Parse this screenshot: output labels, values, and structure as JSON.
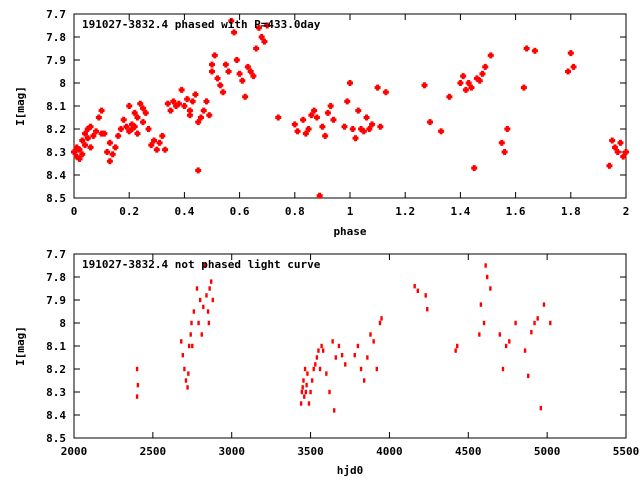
{
  "chart_data": [
    {
      "type": "scatter",
      "title": "191027-3832.4 phased with P=433.0day",
      "xlabel": "phase",
      "ylabel": "I[mag]",
      "xlim": [
        0,
        2
      ],
      "ylim": [
        8.5,
        7.7
      ],
      "x_ticks": [
        "0",
        "0.2",
        "0.4",
        "0.6",
        "0.8",
        "1",
        "1.2",
        "1.4",
        "1.6",
        "1.8",
        "2"
      ],
      "y_ticks": [
        "7.7",
        "7.8",
        "7.9",
        "8",
        "8.1",
        "8.2",
        "8.3",
        "8.4",
        "8.5"
      ],
      "marker_color": "#ff0000",
      "marker": "cross",
      "series": [
        {
          "x": [
            0.0,
            0.01,
            0.01,
            0.02,
            0.02,
            0.03,
            0.03,
            0.04,
            0.04,
            0.05,
            0.05,
            0.06,
            0.06,
            0.07,
            0.08,
            0.09,
            0.1,
            0.1,
            0.11,
            0.12,
            0.13,
            0.13,
            0.14,
            0.15,
            0.16,
            0.17,
            0.18,
            0.19,
            0.2,
            0.2,
            0.21,
            0.21,
            0.22,
            0.22,
            0.23,
            0.23,
            0.24,
            0.25,
            0.25,
            0.26,
            0.27,
            0.28,
            0.29,
            0.3,
            0.31,
            0.32,
            0.33,
            0.34,
            0.35,
            0.36,
            0.37,
            0.38,
            0.39,
            0.4,
            0.41,
            0.42,
            0.42,
            0.43,
            0.44,
            0.45,
            0.45,
            0.46,
            0.47,
            0.48,
            0.49,
            0.5,
            0.5,
            0.51,
            0.52,
            0.53,
            0.54,
            0.55,
            0.56,
            0.57,
            0.58,
            0.59,
            0.6,
            0.61,
            0.62,
            0.63,
            0.64,
            0.65,
            0.66,
            0.67,
            0.68,
            0.69,
            0.7,
            0.74,
            0.8,
            0.81,
            0.83,
            0.84,
            0.85,
            0.86,
            0.87,
            0.88,
            0.89,
            0.9,
            0.91,
            0.92,
            0.93,
            0.94,
            0.98,
            0.99,
            1.0,
            1.01,
            1.02,
            1.03,
            1.04,
            1.05,
            1.06,
            1.07,
            1.08,
            1.1,
            1.11,
            1.13,
            1.27,
            1.29,
            1.33,
            1.36,
            1.4,
            1.41,
            1.42,
            1.43,
            1.44,
            1.45,
            1.46,
            1.47,
            1.48,
            1.49,
            1.51,
            1.55,
            1.56,
            1.57,
            1.63,
            1.64,
            1.67,
            1.79,
            1.8,
            1.81,
            1.94,
            1.95,
            1.96,
            1.97,
            1.98,
            1.99,
            2.0
          ],
          "y": [
            8.3,
            8.32,
            8.28,
            8.33,
            8.29,
            8.25,
            8.31,
            8.22,
            8.27,
            8.2,
            8.24,
            8.19,
            8.28,
            8.23,
            8.21,
            8.15,
            8.22,
            8.12,
            8.22,
            8.3,
            8.34,
            8.26,
            8.31,
            8.28,
            8.23,
            8.2,
            8.16,
            8.19,
            8.21,
            8.1,
            8.18,
            8.2,
            8.13,
            8.19,
            8.15,
            8.22,
            8.09,
            8.11,
            8.17,
            8.13,
            8.2,
            8.27,
            8.25,
            8.29,
            8.26,
            8.23,
            8.29,
            8.09,
            8.12,
            8.08,
            8.1,
            8.09,
            8.03,
            8.1,
            8.07,
            8.12,
            8.14,
            8.08,
            8.05,
            8.38,
            8.17,
            8.15,
            8.12,
            8.08,
            8.14,
            7.92,
            7.95,
            7.88,
            7.98,
            8.01,
            8.04,
            7.92,
            7.95,
            7.73,
            7.78,
            7.9,
            7.96,
            7.99,
            8.06,
            7.93,
            7.95,
            7.97,
            7.85,
            7.76,
            7.8,
            7.82,
            7.75,
            8.15,
            8.18,
            8.21,
            8.16,
            8.22,
            8.2,
            8.14,
            8.12,
            8.15,
            8.49,
            8.19,
            8.23,
            8.13,
            8.1,
            8.16,
            8.19,
            8.08,
            8.0,
            8.2,
            8.24,
            8.12,
            8.2,
            8.21,
            8.15,
            8.2,
            8.18,
            8.02,
            8.19,
            8.04,
            8.01,
            8.17,
            8.21,
            8.06,
            8.0,
            7.97,
            8.03,
            8.0,
            8.02,
            8.37,
            7.98,
            7.99,
            7.96,
            7.93,
            7.88,
            8.26,
            8.3,
            8.2,
            8.02,
            7.85,
            7.86,
            7.95,
            7.87,
            7.93,
            8.36,
            8.25,
            8.28,
            8.3,
            8.26,
            8.32,
            8.3
          ]
        }
      ]
    },
    {
      "type": "scatter",
      "title": "191027-3832.4 not phased light curve",
      "xlabel": "hjd0",
      "ylabel": "I[mag]",
      "xlim": [
        2000,
        5500
      ],
      "ylim": [
        8.5,
        7.7
      ],
      "x_ticks": [
        "2000",
        "2500",
        "3000",
        "3500",
        "4000",
        "4500",
        "5000",
        "5500"
      ],
      "y_ticks": [
        "7.7",
        "7.8",
        "7.9",
        "8",
        "8.1",
        "8.2",
        "8.3",
        "8.4",
        "8.5"
      ],
      "marker_color": "#ff0000",
      "marker": "dot",
      "series": [
        {
          "x": [
            2400,
            2405,
            2400,
            2680,
            2690,
            2700,
            2710,
            2720,
            2725,
            2730,
            2740,
            2745,
            2750,
            2760,
            2780,
            2790,
            2800,
            2810,
            2820,
            2830,
            2840,
            2850,
            2855,
            2860,
            2870,
            2880,
            3440,
            3445,
            3450,
            3455,
            3460,
            3465,
            3470,
            3475,
            3480,
            3490,
            3500,
            3510,
            3520,
            3530,
            3540,
            3550,
            3560,
            3570,
            3580,
            3600,
            3620,
            3640,
            3650,
            3660,
            3680,
            3700,
            3720,
            3780,
            3800,
            3820,
            3840,
            3860,
            3880,
            3900,
            3920,
            3940,
            3950,
            4160,
            4180,
            4230,
            4240,
            4420,
            4430,
            4570,
            4580,
            4600,
            4610,
            4620,
            4640,
            4700,
            4720,
            4740,
            4760,
            4800,
            4860,
            4880,
            4900,
            4920,
            4940,
            4960,
            4980,
            5020
          ],
          "y": [
            8.2,
            8.27,
            8.32,
            8.08,
            8.14,
            8.2,
            8.25,
            8.28,
            8.22,
            8.1,
            8.05,
            8.0,
            8.1,
            7.95,
            7.85,
            8.0,
            7.9,
            8.05,
            7.93,
            7.75,
            7.88,
            7.95,
            8.0,
            7.85,
            7.82,
            7.9,
            8.35,
            8.3,
            8.28,
            8.25,
            8.32,
            8.2,
            8.3,
            8.27,
            8.22,
            8.35,
            8.3,
            8.25,
            8.2,
            8.18,
            8.15,
            8.12,
            8.2,
            8.1,
            8.12,
            8.22,
            8.3,
            8.08,
            8.38,
            8.15,
            8.1,
            8.14,
            8.18,
            8.14,
            8.1,
            8.2,
            8.25,
            8.15,
            8.05,
            8.08,
            8.2,
            8.0,
            7.98,
            7.84,
            7.86,
            7.88,
            7.94,
            8.12,
            8.1,
            8.05,
            7.92,
            8.0,
            7.75,
            7.8,
            7.85,
            8.05,
            8.2,
            8.1,
            8.08,
            8.0,
            8.12,
            8.23,
            8.04,
            8.0,
            7.98,
            8.37,
            7.92,
            8.0
          ]
        }
      ]
    }
  ]
}
